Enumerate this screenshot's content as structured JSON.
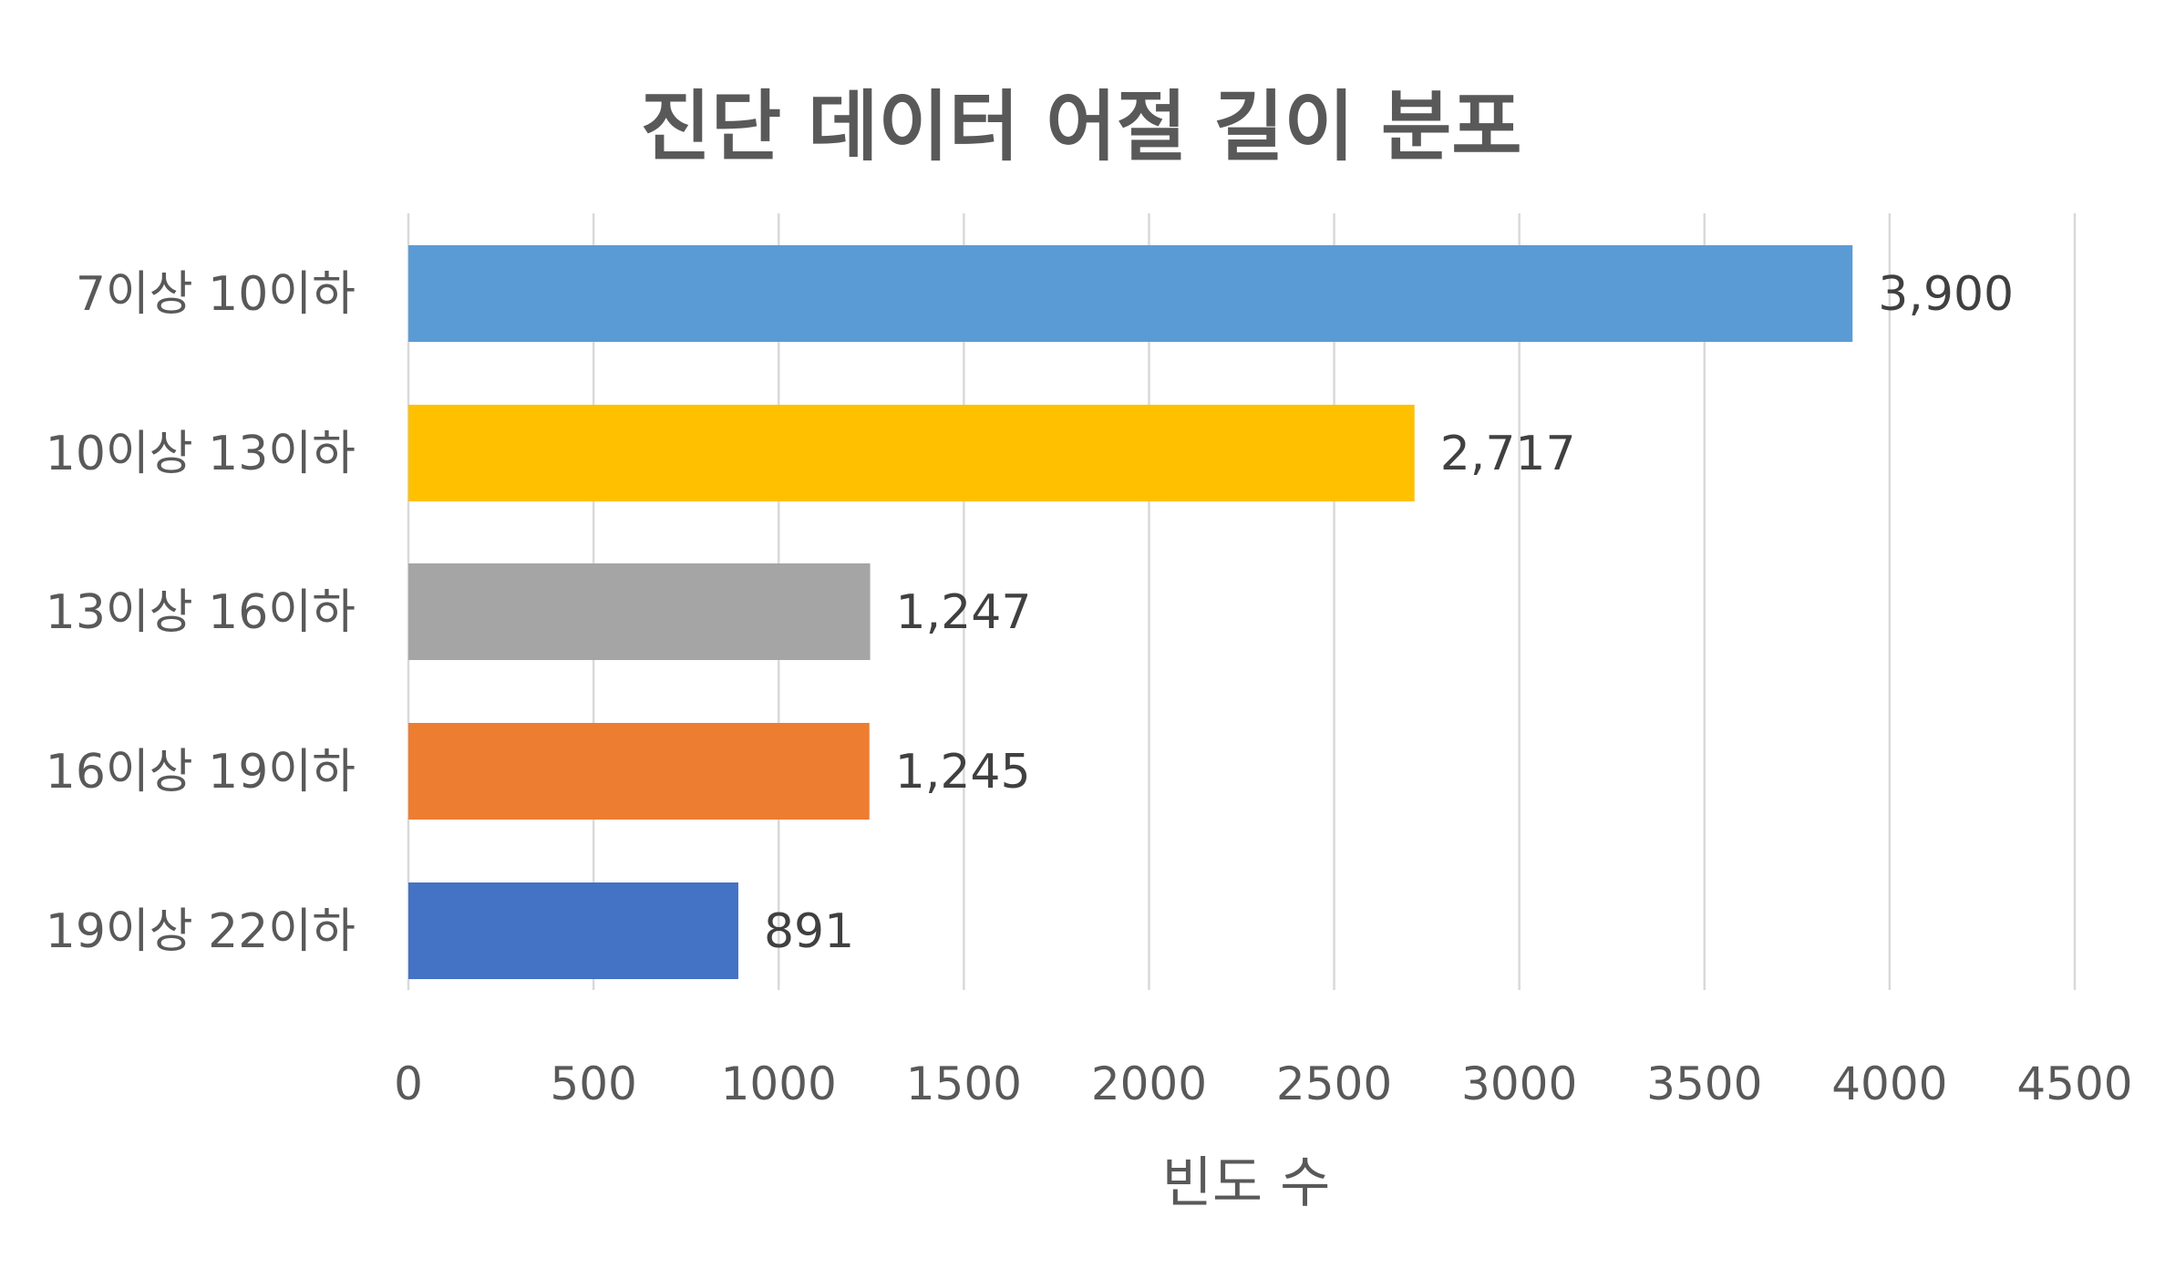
{
  "chart_data": {
    "type": "bar",
    "orientation": "horizontal",
    "title": "진단 데이터 어절 길이 분포",
    "xlabel": "빈도 수",
    "ylabel": "",
    "categories": [
      "7이상 10이하",
      "10이상 13이하",
      "13이상 16이하",
      "16이상 19이하",
      "19이상 22이하"
    ],
    "values": [
      3900,
      2717,
      1247,
      1245,
      891
    ],
    "data_labels": [
      "3,900",
      "2,717",
      "1,247",
      "1,245",
      "891"
    ],
    "bar_colors": [
      "#5B9BD5",
      "#FFC000",
      "#A5A5A5",
      "#ED7D31",
      "#4472C4"
    ],
    "xlim": [
      0,
      4500
    ],
    "x_ticks": [
      0,
      500,
      1000,
      1500,
      2000,
      2500,
      3000,
      3500,
      4000,
      4500
    ],
    "x_tick_labels": [
      "0",
      "500",
      "1000",
      "1500",
      "2000",
      "2500",
      "3000",
      "3500",
      "4000",
      "4500"
    ],
    "grid": true,
    "legend": "none"
  }
}
